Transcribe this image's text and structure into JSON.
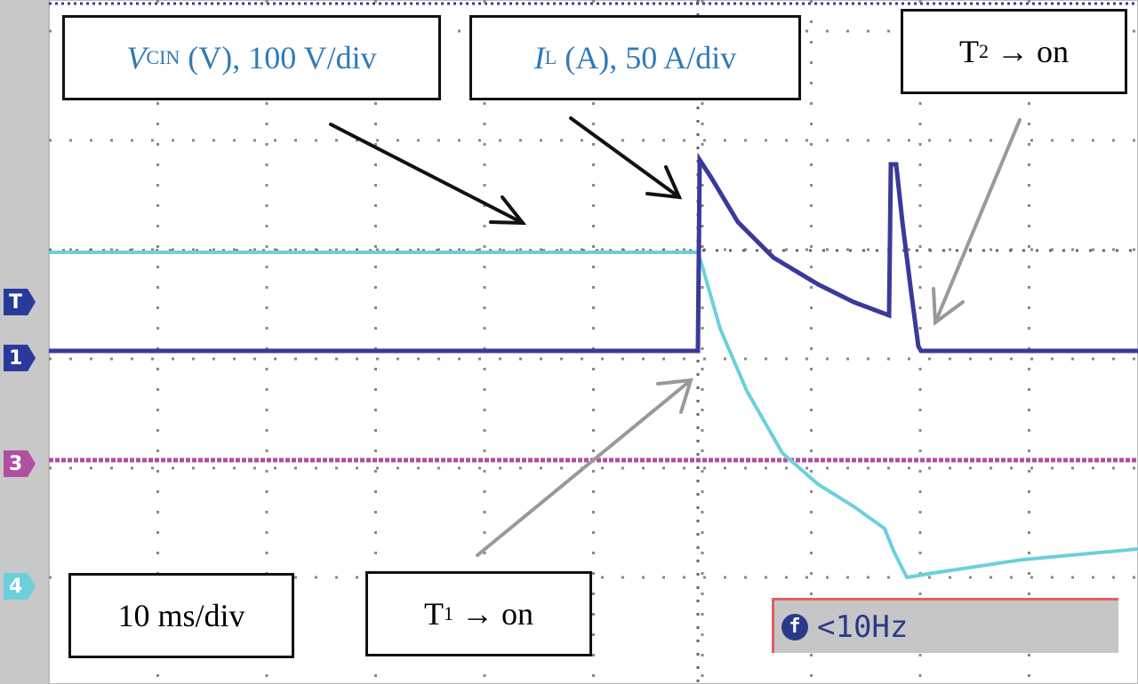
{
  "labels": [
    {
      "main": "V",
      "sub": "CIN",
      "rest": "(V), 100 V/div"
    },
    {
      "main": "I",
      "sub": "L",
      "rest": "(A), 50 A/div"
    },
    {
      "main": "T",
      "sub": "2",
      "rest": "→ on"
    },
    {
      "main": "10 ms/div"
    },
    {
      "main": "T",
      "sub": "1",
      "rest": "→ on"
    }
  ],
  "channel_markers": [
    "T",
    "1",
    "3",
    "4"
  ],
  "status": {
    "icon": "f",
    "text": "<10Hz"
  }
}
